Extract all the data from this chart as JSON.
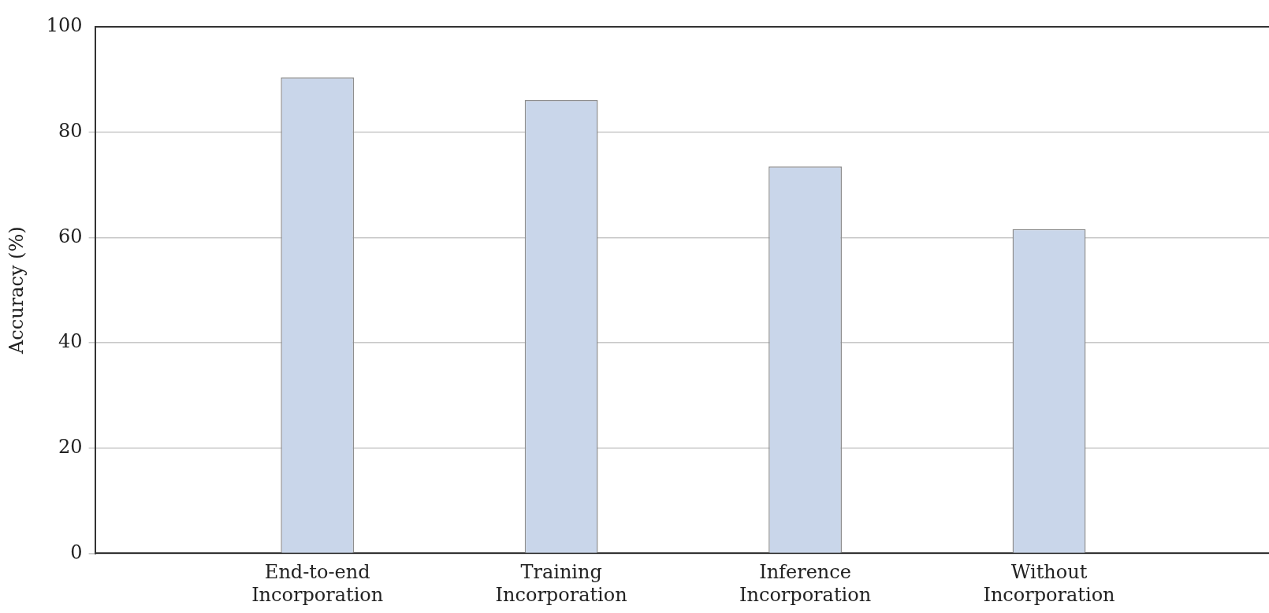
{
  "chart_data": {
    "type": "bar",
    "ylabel": "Accuracy (%)",
    "categories": [
      "End-to-end Incorporation",
      "Training Incorporation",
      "Inference Incorporation",
      "Without Incorporation"
    ],
    "values": [
      90.4,
      86.1,
      73.5,
      61.6
    ],
    "color": "#c9d6ea",
    "ylim": [
      0,
      100
    ],
    "yticks": [
      0,
      20,
      40,
      60,
      80,
      100
    ],
    "grid": "y",
    "legend": false
  }
}
